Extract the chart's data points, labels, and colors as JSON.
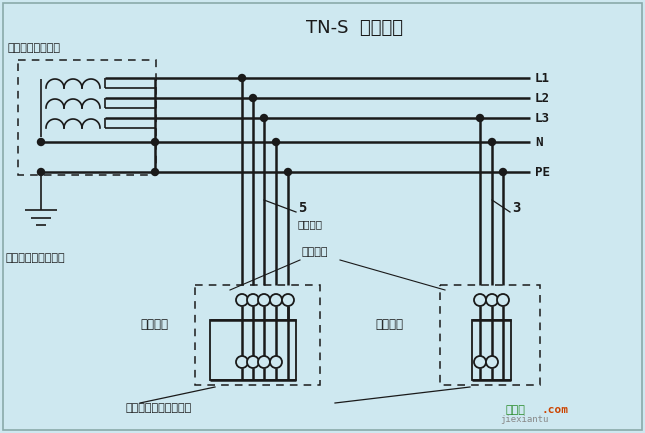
{
  "bg_color": "#cee8f0",
  "line_color": "#1a1a1a",
  "title": "TN-S  接地系统",
  "labels_right": [
    "L1",
    "L2",
    "L3",
    "N",
    "PE"
  ],
  "label_top_left": "电力变压器低压侧",
  "label_bottom_left": "电力变压器就近接地",
  "label_device1": "用电设备",
  "label_device2": "用电设备",
  "label_cable": "电源电缆",
  "label_entry": "电源入户",
  "label_exposed": "用电设备外露导电部分",
  "label_5": "5",
  "label_3": "3",
  "watermark1": "接线图",
  "watermark2": ".com",
  "watermark3": "jiexiantu"
}
